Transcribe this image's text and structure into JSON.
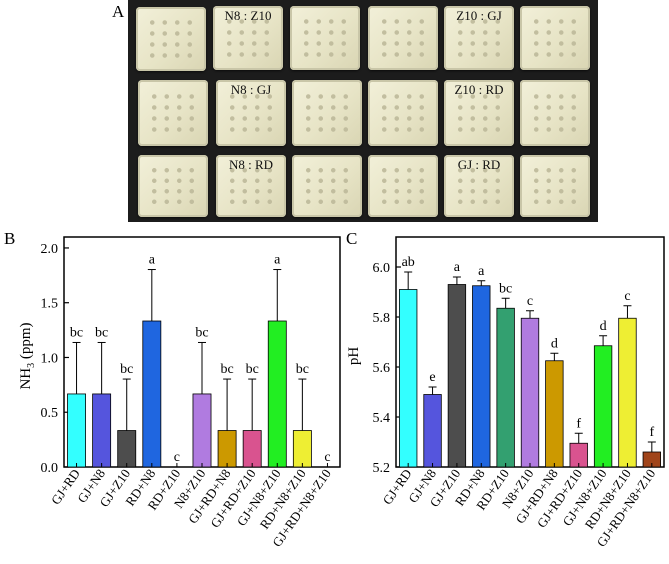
{
  "panel_labels": {
    "a": "A",
    "b": "B",
    "c": "C"
  },
  "photo": {
    "plate_labels": [
      "N8 : Z10",
      "Z10 : GJ",
      "N8 : GJ",
      "Z10 : RD",
      "N8 : RD",
      "GJ : RD"
    ]
  },
  "chart_data": [
    {
      "type": "bar",
      "panel": "B",
      "categories": [
        "GJ+RD",
        "GJ+N8",
        "GJ+Z10",
        "RD+N8",
        "RD+Z10",
        "N8+Z10",
        "GJ+RD+N8",
        "GJ+RD+Z10",
        "GJ+N8+Z10",
        "RD+N8+Z10",
        "GJ+RD+N8+Z10"
      ],
      "values": [
        0.667,
        0.667,
        0.333,
        1.333,
        0.0,
        0.667,
        0.333,
        0.333,
        1.333,
        0.333,
        0.0
      ],
      "errors": [
        0.47,
        0.47,
        0.47,
        0.47,
        0.0,
        0.47,
        0.47,
        0.47,
        0.47,
        0.47,
        0.0
      ],
      "letters": [
        "bc",
        "bc",
        "bc",
        "a",
        "c",
        "bc",
        "bc",
        "bc",
        "a",
        "bc",
        "c"
      ],
      "colors": [
        "#33ffff",
        "#5555dd",
        "#4d4d4d",
        "#1f66e0",
        "#2e9e6a",
        "#b07be0",
        "#cc9900",
        "#d9538f",
        "#22ee22",
        "#eeee33",
        "#a0441a"
      ],
      "ylabel_main": "NH",
      "ylabel_sub": "3",
      "ylabel_unit": " (ppm)",
      "ylim": [
        0,
        2.1
      ],
      "yticks": [
        "0.0",
        "0.5",
        "1.0",
        "1.5",
        "2.0"
      ],
      "ytick_values": [
        0,
        0.5,
        1.0,
        1.5,
        2.0
      ]
    },
    {
      "type": "bar",
      "panel": "C",
      "categories": [
        "GJ+RD",
        "GJ+N8",
        "GJ+Z10",
        "RD+N8",
        "RD+Z10",
        "N8+Z10",
        "GJ+RD+N8",
        "GJ+RD+Z10",
        "GJ+N8+Z10",
        "RD+N8+Z10",
        "GJ+RD+N8+Z10"
      ],
      "values": [
        5.91,
        5.49,
        5.93,
        5.925,
        5.835,
        5.795,
        5.625,
        5.295,
        5.685,
        5.795,
        5.26
      ],
      "errors": [
        0.07,
        0.03,
        0.03,
        0.02,
        0.04,
        0.03,
        0.03,
        0.04,
        0.04,
        0.05,
        0.04
      ],
      "letters": [
        "ab",
        "e",
        "a",
        "a",
        "bc",
        "c",
        "d",
        "f",
        "d",
        "c",
        "f"
      ],
      "colors": [
        "#33ffff",
        "#5555dd",
        "#4d4d4d",
        "#1f66e0",
        "#33a070",
        "#b07be0",
        "#cc9900",
        "#d9538f",
        "#22ee22",
        "#eeee33",
        "#a0441a"
      ],
      "ylabel": "pH",
      "ylim": [
        5.2,
        6.12
      ],
      "yticks": [
        "5.2",
        "5.4",
        "5.6",
        "5.8",
        "6.0"
      ],
      "ytick_values": [
        5.2,
        5.4,
        5.6,
        5.8,
        6.0
      ]
    }
  ]
}
